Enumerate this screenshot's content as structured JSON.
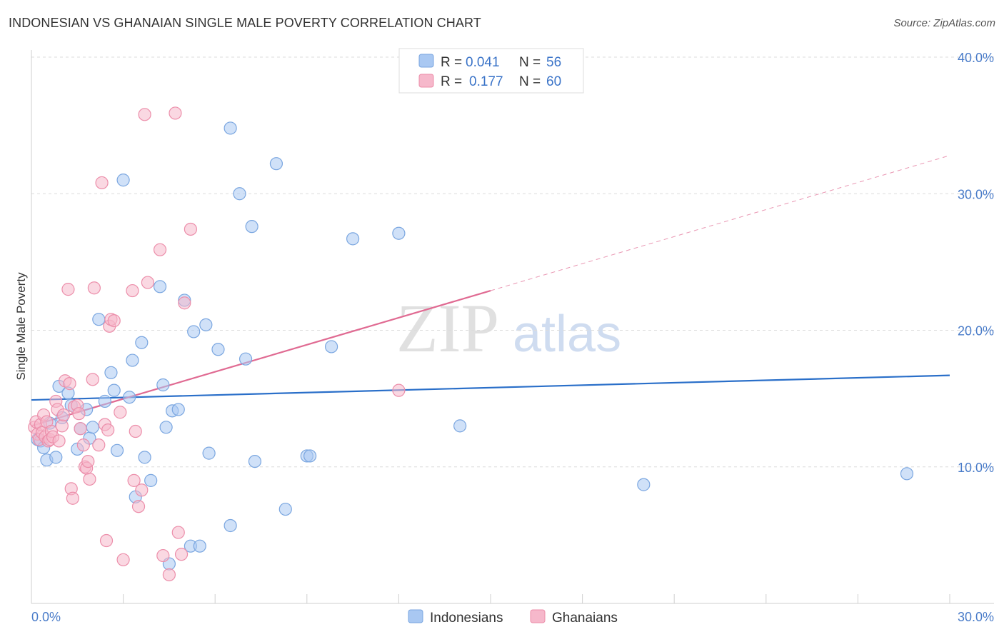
{
  "title": "INDONESIAN VS GHANAIAN SINGLE MALE POVERTY CORRELATION CHART",
  "source": "Source: ZipAtlas.com",
  "watermark": {
    "zip": "ZIP",
    "atlas": "atlas"
  },
  "colors": {
    "indonesians_fill": "#a9c8f2",
    "indonesians_stroke": "#7aa6e0",
    "indonesians_line": "#2a6fc9",
    "ghanaians_fill": "#f6b8cb",
    "ghanaians_stroke": "#ec8eaa",
    "ghanaians_line": "#e06a92",
    "tick_text": "#4a7cc9"
  },
  "legend": {
    "rows": [
      {
        "r_label": "R =",
        "r_value": "0.041",
        "n_label": "N =",
        "n_value": "56"
      },
      {
        "r_label": "R =",
        "r_value": "0.177",
        "n_label": "N =",
        "n_value": "60"
      }
    ]
  },
  "chart_data": {
    "type": "scatter",
    "title": "INDONESIAN VS GHANAIAN SINGLE MALE POVERTY CORRELATION CHART",
    "xlabel": "",
    "ylabel": "Single Male Poverty",
    "xlim": [
      0,
      30
    ],
    "ylim": [
      0,
      40
    ],
    "x_ticks_labeled": [
      "0.0%",
      "30.0%"
    ],
    "y_ticks": [
      "10.0%",
      "20.0%",
      "30.0%",
      "40.0%"
    ],
    "y_tick_values": [
      10,
      20,
      30,
      40
    ],
    "grid": "dashed horizontal",
    "legend_position": "top-center",
    "series": [
      {
        "name": "Indonesians",
        "r": 0.041,
        "n": 56,
        "trend": {
          "x": [
            0,
            30
          ],
          "y": [
            14.9,
            16.7
          ],
          "dashed_extension": false
        },
        "points": [
          [
            0.2,
            12.0
          ],
          [
            0.3,
            11.9
          ],
          [
            0.4,
            11.4
          ],
          [
            0.5,
            10.5
          ],
          [
            0.6,
            13.2
          ],
          [
            0.8,
            10.7
          ],
          [
            0.9,
            15.9
          ],
          [
            1.0,
            13.6
          ],
          [
            1.2,
            15.4
          ],
          [
            1.3,
            14.5
          ],
          [
            1.5,
            11.3
          ],
          [
            1.6,
            12.8
          ],
          [
            1.8,
            14.2
          ],
          [
            1.9,
            12.1
          ],
          [
            2.0,
            12.9
          ],
          [
            2.2,
            20.8
          ],
          [
            2.4,
            14.8
          ],
          [
            2.6,
            16.9
          ],
          [
            2.7,
            15.6
          ],
          [
            2.8,
            11.2
          ],
          [
            3.0,
            31.0
          ],
          [
            3.2,
            15.1
          ],
          [
            3.3,
            17.8
          ],
          [
            3.4,
            7.8
          ],
          [
            3.6,
            19.1
          ],
          [
            3.7,
            10.7
          ],
          [
            3.9,
            9.0
          ],
          [
            4.2,
            23.2
          ],
          [
            4.3,
            16.0
          ],
          [
            4.4,
            12.9
          ],
          [
            4.5,
            2.9
          ],
          [
            4.6,
            14.1
          ],
          [
            4.8,
            14.2
          ],
          [
            5.0,
            22.2
          ],
          [
            5.2,
            4.2
          ],
          [
            5.3,
            19.9
          ],
          [
            5.5,
            4.2
          ],
          [
            5.7,
            20.4
          ],
          [
            5.8,
            11.0
          ],
          [
            6.1,
            18.6
          ],
          [
            6.5,
            34.8
          ],
          [
            6.5,
            5.7
          ],
          [
            6.8,
            30.0
          ],
          [
            7.0,
            17.9
          ],
          [
            7.2,
            27.6
          ],
          [
            7.3,
            10.4
          ],
          [
            8.0,
            32.2
          ],
          [
            8.3,
            6.9
          ],
          [
            9.0,
            10.8
          ],
          [
            9.1,
            10.8
          ],
          [
            9.8,
            18.8
          ],
          [
            10.5,
            26.7
          ],
          [
            12.0,
            27.1
          ],
          [
            14.0,
            13.0
          ],
          [
            20.0,
            8.7
          ],
          [
            28.6,
            9.5
          ]
        ]
      },
      {
        "name": "Ghanaians",
        "r": 0.177,
        "n": 60,
        "trend": {
          "x": [
            0,
            15
          ],
          "y": [
            13.0,
            22.9
          ],
          "dashed_extension": {
            "x": [
              15,
              30
            ],
            "y": [
              22.9,
              32.8
            ]
          }
        },
        "points": [
          [
            0.1,
            12.9
          ],
          [
            0.15,
            13.3
          ],
          [
            0.2,
            12.4
          ],
          [
            0.25,
            12.0
          ],
          [
            0.3,
            13.1
          ],
          [
            0.35,
            12.5
          ],
          [
            0.4,
            13.8
          ],
          [
            0.45,
            12.2
          ],
          [
            0.5,
            13.3
          ],
          [
            0.55,
            11.9
          ],
          [
            0.6,
            12.0
          ],
          [
            0.65,
            12.6
          ],
          [
            0.7,
            12.2
          ],
          [
            0.8,
            14.8
          ],
          [
            0.85,
            14.2
          ],
          [
            0.9,
            11.9
          ],
          [
            1.0,
            13.0
          ],
          [
            1.05,
            13.8
          ],
          [
            1.1,
            16.3
          ],
          [
            1.2,
            23.0
          ],
          [
            1.25,
            16.1
          ],
          [
            1.3,
            8.4
          ],
          [
            1.35,
            7.7
          ],
          [
            1.4,
            14.4
          ],
          [
            1.5,
            14.5
          ],
          [
            1.55,
            13.9
          ],
          [
            1.6,
            12.8
          ],
          [
            1.7,
            11.6
          ],
          [
            1.75,
            10.0
          ],
          [
            1.8,
            9.9
          ],
          [
            1.85,
            10.4
          ],
          [
            1.9,
            9.1
          ],
          [
            2.0,
            16.4
          ],
          [
            2.05,
            23.1
          ],
          [
            2.2,
            11.6
          ],
          [
            2.3,
            30.8
          ],
          [
            2.4,
            13.1
          ],
          [
            2.45,
            4.6
          ],
          [
            2.5,
            12.7
          ],
          [
            2.55,
            20.3
          ],
          [
            2.6,
            20.8
          ],
          [
            2.7,
            20.7
          ],
          [
            2.9,
            14.0
          ],
          [
            3.0,
            3.2
          ],
          [
            3.3,
            22.9
          ],
          [
            3.35,
            9.0
          ],
          [
            3.4,
            12.6
          ],
          [
            3.5,
            7.1
          ],
          [
            3.6,
            8.3
          ],
          [
            3.7,
            35.8
          ],
          [
            3.8,
            23.5
          ],
          [
            4.2,
            25.9
          ],
          [
            4.3,
            3.5
          ],
          [
            4.5,
            2.1
          ],
          [
            4.7,
            35.9
          ],
          [
            4.8,
            5.2
          ],
          [
            5.0,
            22.0
          ],
          [
            5.2,
            27.4
          ],
          [
            12.0,
            15.6
          ],
          [
            4.9,
            3.6
          ]
        ]
      }
    ]
  },
  "bottom_legend": {
    "items": [
      "Indonesians",
      "Ghanaians"
    ]
  }
}
